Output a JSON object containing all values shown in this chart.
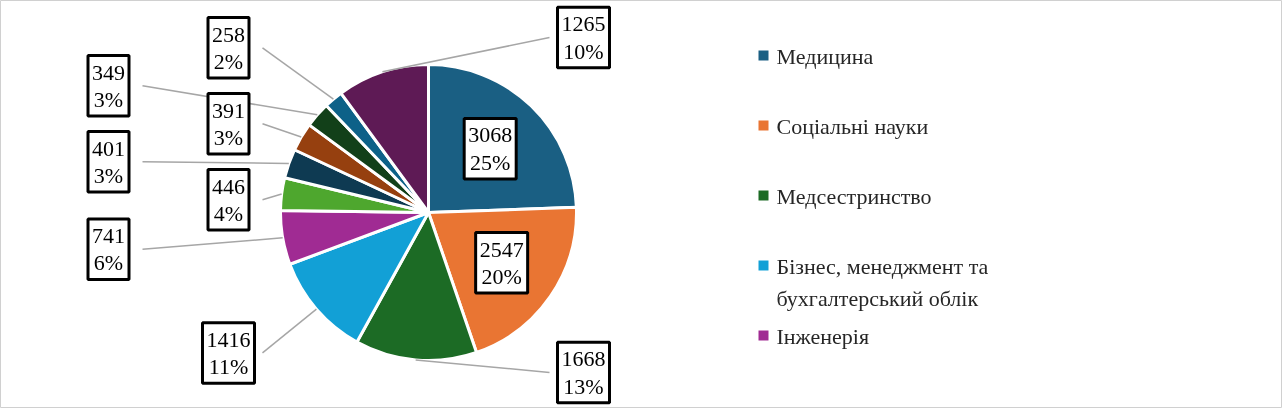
{
  "chart_data": {
    "type": "pie",
    "categories": [
      "Медицина",
      "Соціальні науки",
      "Медсестринство",
      "Бізнес, менеджмент та бухгалтерський облік",
      "Інженерія",
      null,
      null,
      null,
      null,
      null,
      null
    ],
    "values": [
      3068,
      2547,
      1668,
      1416,
      741,
      446,
      401,
      391,
      349,
      258,
      1265
    ],
    "colors": [
      "#1a5f83",
      "#e97533",
      "#1c6b25",
      "#12a0d6",
      "#a02b93",
      "#4ea72e",
      "#0e3a52",
      "#96400f",
      "#124019",
      "#0d6188",
      "#5e1a55"
    ],
    "value_labels": [
      "3068\n25%",
      "2547\n20%",
      "1668\n13%",
      "1416\n11%",
      "741\n6%",
      "446\n4%",
      "401\n3%",
      "391\n3%",
      "349\n3%",
      "258\n2%",
      "1265\n10%"
    ],
    "legend": "right"
  }
}
